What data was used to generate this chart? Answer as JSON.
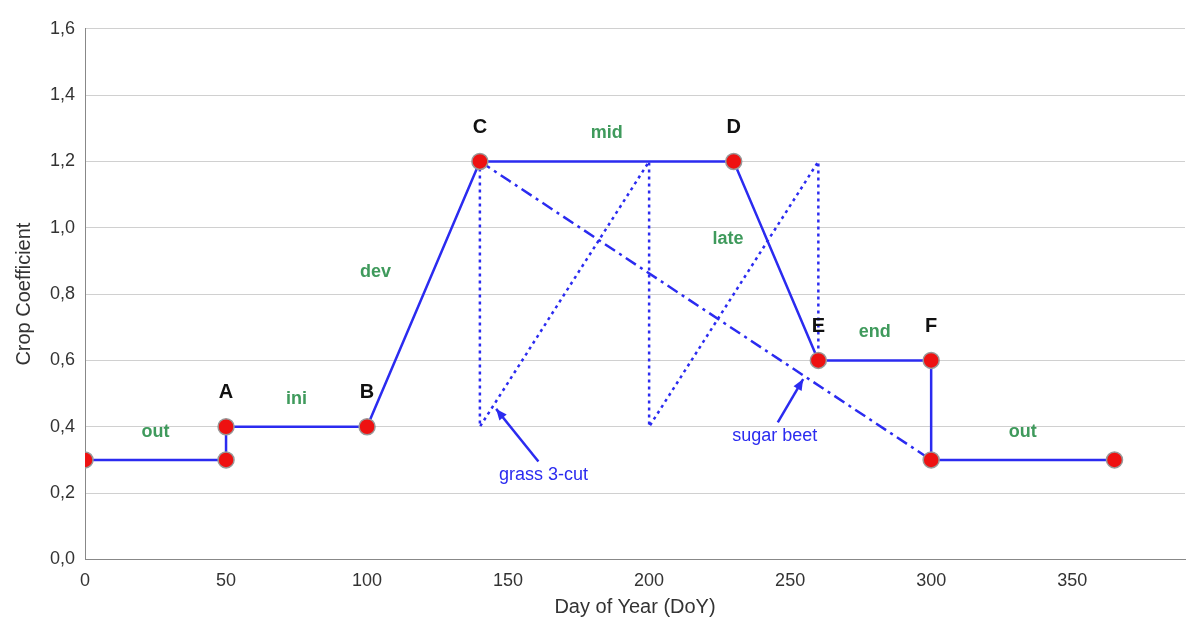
{
  "chart_data": {
    "type": "line",
    "xlabel": "Day of Year (DoY)",
    "ylabel": "Crop Coefficient",
    "xlim": [
      0,
      390
    ],
    "xticks": [
      0,
      50,
      100,
      150,
      200,
      250,
      300,
      350
    ],
    "ylim": [
      0,
      1.6
    ],
    "yticks": [
      {
        "value": 0,
        "label": "0,0"
      },
      {
        "value": 0.2,
        "label": "0,2"
      },
      {
        "value": 0.4,
        "label": "0,4"
      },
      {
        "value": 0.6,
        "label": "0,6"
      },
      {
        "value": 0.8,
        "label": "0,8"
      },
      {
        "value": 1,
        "label": "1,0"
      },
      {
        "value": 1.2,
        "label": "1,2"
      },
      {
        "value": 1.4,
        "label": "1,4"
      },
      {
        "value": 1.6,
        "label": "1,6"
      }
    ],
    "grid": "y",
    "legend": false,
    "series": [
      {
        "color": "#2b2bf0",
        "marker": "circle",
        "line_style": "solid",
        "x": [
          0,
          50,
          50,
          100,
          140,
          230,
          260,
          300,
          300,
          365
        ],
        "values": [
          0.3,
          0.3,
          0.4,
          0.4,
          1.2,
          1.2,
          0.6,
          0.6,
          0.3,
          0.3
        ],
        "value_labels": [
          null,
          null,
          "A",
          "B",
          "C",
          "D",
          "E",
          "F",
          null,
          null
        ]
      },
      {
        "name": "grass 3-cut",
        "color": "#2b2bf0",
        "marker": "none",
        "line_style": "dotted",
        "x": [
          140,
          140,
          200,
          200,
          260,
          260
        ],
        "values": [
          1.2,
          0.4,
          1.2,
          0.4,
          1.2,
          0.6
        ]
      },
      {
        "name": "sugar beet",
        "color": "#2b2bf0",
        "marker": "none",
        "line_style": "dashed",
        "x": [
          140,
          300
        ],
        "values": [
          1.2,
          0.3
        ]
      }
    ],
    "annotations": [
      {
        "text": "out",
        "x": 25,
        "y": 0.3
      },
      {
        "text": "ini",
        "x": 75,
        "y": 0.4
      },
      {
        "text": "dev",
        "x": 120,
        "y": 0.8
      },
      {
        "text": "mid",
        "x": 185,
        "y": 1.2
      },
      {
        "text": "late",
        "x": 245,
        "y": 0.9
      },
      {
        "text": "end",
        "x": 280,
        "y": 0.6
      },
      {
        "text": "out",
        "x": 332.5,
        "y": 0.3
      }
    ]
  }
}
